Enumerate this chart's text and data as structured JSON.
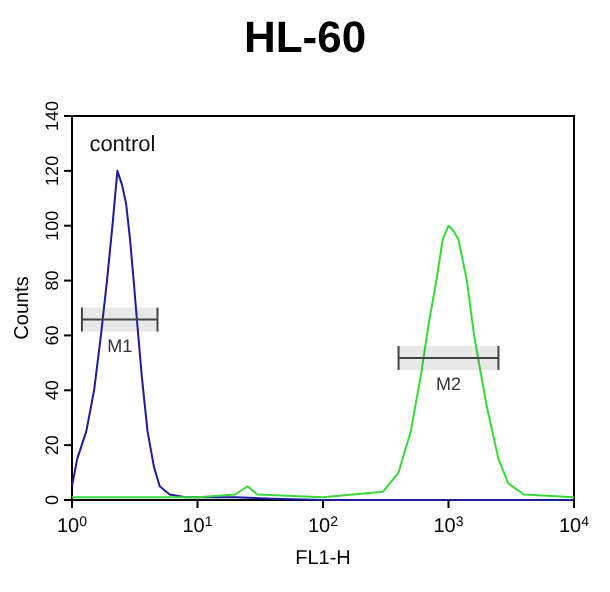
{
  "chart_data": {
    "type": "line",
    "title": "HL-60",
    "xlabel": "FL1-H",
    "ylabel": "Counts",
    "log": "x",
    "xlim": [
      1,
      10000
    ],
    "xticks": [
      {
        "value": 1,
        "label": "10$^{0}$"
      },
      {
        "value": 10,
        "label": "10$^{1}$"
      },
      {
        "value": 100,
        "label": "10$^{2}$"
      },
      {
        "value": 1000,
        "label": "10$^{3}$"
      },
      {
        "value": 10000,
        "label": "10$^{4}$"
      }
    ],
    "ylim": [
      0,
      140
    ],
    "yticks": [
      0,
      20,
      40,
      60,
      80,
      100,
      120,
      140
    ],
    "series": [
      {
        "name": "control",
        "color": "#1c1c9c",
        "x": [
          1,
          1.1,
          1.3,
          1.5,
          1.7,
          1.9,
          2.1,
          2.3,
          2.5,
          2.7,
          2.9,
          3.1,
          3.3,
          3.6,
          4,
          4.5,
          5,
          6,
          8,
          10,
          20,
          40,
          100,
          1000,
          10000
        ],
        "values": [
          5,
          15,
          25,
          40,
          60,
          80,
          100,
          120,
          115,
          108,
          95,
          80,
          65,
          45,
          25,
          12,
          5,
          2,
          1,
          1,
          1,
          0.5,
          0,
          0,
          0
        ]
      },
      {
        "color": "#3ad83a",
        "x": [
          1,
          10,
          20,
          25,
          30,
          100,
          300,
          400,
          500,
          600,
          700,
          800,
          900,
          1000,
          1100,
          1200,
          1400,
          1600,
          2000,
          2500,
          3000,
          4000,
          10000
        ],
        "values": [
          1,
          1,
          2,
          5,
          2,
          1,
          3,
          10,
          25,
          45,
          65,
          80,
          95,
          100,
          98,
          95,
          80,
          60,
          35,
          15,
          6,
          2,
          1
        ]
      }
    ],
    "bands": [
      {
        "axis": "x",
        "from": 1.2,
        "to": 4.8,
        "label": "M1",
        "color": "#444444"
      },
      {
        "axis": "x",
        "from": 400,
        "to": 2500,
        "label": "M2",
        "color": "#444444"
      }
    ],
    "marker": "none",
    "line_style": "solid",
    "grid": false
  }
}
